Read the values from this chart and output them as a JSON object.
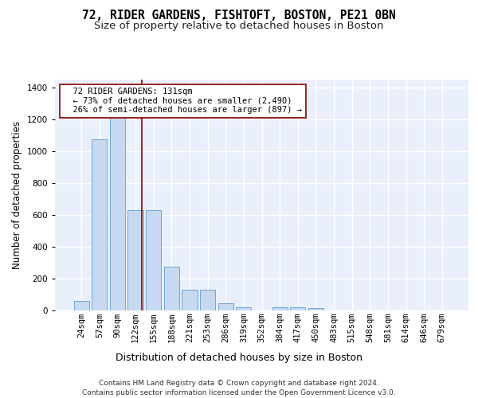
{
  "title1": "72, RIDER GARDENS, FISHTOFT, BOSTON, PE21 0BN",
  "title2": "Size of property relative to detached houses in Boston",
  "xlabel": "Distribution of detached houses by size in Boston",
  "ylabel": "Number of detached properties",
  "categories": [
    "24sqm",
    "57sqm",
    "90sqm",
    "122sqm",
    "155sqm",
    "188sqm",
    "221sqm",
    "253sqm",
    "286sqm",
    "319sqm",
    "352sqm",
    "384sqm",
    "417sqm",
    "450sqm",
    "483sqm",
    "515sqm",
    "548sqm",
    "581sqm",
    "614sqm",
    "646sqm",
    "679sqm"
  ],
  "values": [
    60,
    1075,
    1300,
    630,
    630,
    275,
    130,
    130,
    45,
    20,
    0,
    20,
    20,
    15,
    0,
    0,
    0,
    0,
    0,
    0,
    0
  ],
  "bar_color": "#c6d9f0",
  "bar_edge_color": "#5b9bd5",
  "ylim": [
    0,
    1450
  ],
  "yticks": [
    0,
    200,
    400,
    600,
    800,
    1000,
    1200,
    1400
  ],
  "red_line_x": 3.35,
  "annotation_text": "  72 RIDER GARDENS: 131sqm\n  ← 73% of detached houses are smaller (2,490)\n  26% of semi-detached houses are larger (897) →",
  "bg_color": "#eaf0fb",
  "grid_color": "#ffffff",
  "footer": "Contains HM Land Registry data © Crown copyright and database right 2024.\nContains public sector information licensed under the Open Government Licence v3.0.",
  "title1_fontsize": 10.5,
  "title2_fontsize": 9.5,
  "xlabel_fontsize": 9,
  "ylabel_fontsize": 8.5,
  "tick_fontsize": 7.5,
  "annot_fontsize": 7.5,
  "footer_fontsize": 6.5
}
